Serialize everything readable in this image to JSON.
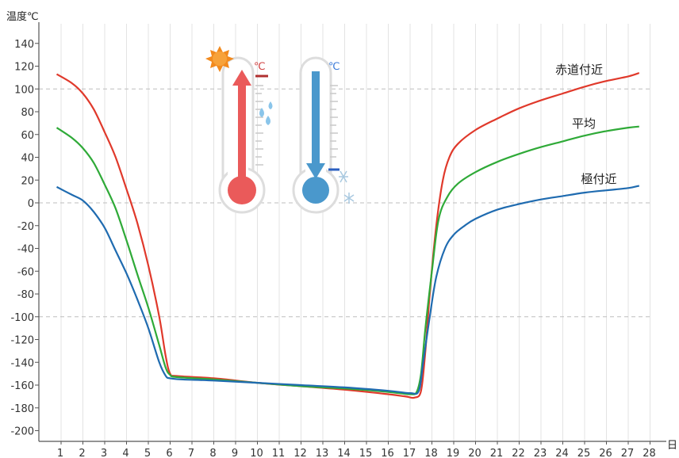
{
  "chart_data": {
    "type": "line",
    "ylabel": "温度℃",
    "xlabel": "日",
    "xlim": [
      0,
      28.5
    ],
    "ylim": [
      -210,
      150
    ],
    "x_ticks": [
      1,
      2,
      3,
      4,
      5,
      6,
      7,
      8,
      9,
      10,
      11,
      12,
      13,
      14,
      15,
      16,
      17,
      18,
      19,
      20,
      21,
      22,
      23,
      24,
      25,
      26,
      27,
      28
    ],
    "y_ticks": [
      140,
      120,
      100,
      80,
      60,
      40,
      20,
      0,
      -20,
      -40,
      -60,
      -80,
      -100,
      -120,
      -140,
      -160,
      -180,
      -200
    ],
    "dashed_reference_lines": [
      100,
      0,
      -100
    ],
    "grid": "vertical lines at each day",
    "icons": [
      "sun-icon",
      "thermometer-hot-icon",
      "water-drops-icon",
      "thermometer-cold-icon",
      "snowflake-icon"
    ],
    "series": [
      {
        "name": "赤道付近",
        "color": "#e0392b",
        "points": [
          [
            0.8,
            113
          ],
          [
            1.5,
            105
          ],
          [
            2,
            96
          ],
          [
            2.5,
            82
          ],
          [
            3,
            62
          ],
          [
            3.5,
            40
          ],
          [
            4,
            12
          ],
          [
            4.5,
            -18
          ],
          [
            5,
            -55
          ],
          [
            5.5,
            -100
          ],
          [
            5.8,
            -135
          ],
          [
            6,
            -150
          ],
          [
            6.3,
            -152
          ],
          [
            8,
            -154
          ],
          [
            10,
            -158
          ],
          [
            12,
            -161
          ],
          [
            14,
            -164
          ],
          [
            16,
            -168
          ],
          [
            16.8,
            -170
          ],
          [
            17.2,
            -171
          ],
          [
            17.5,
            -165
          ],
          [
            17.7,
            -130
          ],
          [
            17.9,
            -80
          ],
          [
            18.2,
            -20
          ],
          [
            18.5,
            20
          ],
          [
            18.8,
            40
          ],
          [
            19.2,
            52
          ],
          [
            20,
            64
          ],
          [
            21,
            74
          ],
          [
            22,
            83
          ],
          [
            23,
            90
          ],
          [
            24,
            96
          ],
          [
            25,
            102
          ],
          [
            26,
            107
          ],
          [
            27,
            111
          ],
          [
            27.5,
            114
          ]
        ]
      },
      {
        "name": "平均",
        "color": "#2faa38",
        "points": [
          [
            0.8,
            66
          ],
          [
            1.5,
            57
          ],
          [
            2,
            48
          ],
          [
            2.5,
            35
          ],
          [
            3,
            16
          ],
          [
            3.5,
            -5
          ],
          [
            4,
            -33
          ],
          [
            4.5,
            -63
          ],
          [
            5,
            -92
          ],
          [
            5.5,
            -125
          ],
          [
            5.8,
            -145
          ],
          [
            6,
            -151
          ],
          [
            6.3,
            -153
          ],
          [
            8,
            -155
          ],
          [
            10,
            -158
          ],
          [
            12,
            -161
          ],
          [
            14,
            -163
          ],
          [
            16,
            -166
          ],
          [
            17,
            -168
          ],
          [
            17.3,
            -166
          ],
          [
            17.5,
            -150
          ],
          [
            17.7,
            -110
          ],
          [
            18,
            -60
          ],
          [
            18.3,
            -15
          ],
          [
            18.7,
            5
          ],
          [
            19.2,
            17
          ],
          [
            20,
            27
          ],
          [
            21,
            36
          ],
          [
            22,
            43
          ],
          [
            23,
            49
          ],
          [
            24,
            54
          ],
          [
            25,
            59
          ],
          [
            26,
            63
          ],
          [
            27,
            66
          ],
          [
            27.5,
            67
          ]
        ]
      },
      {
        "name": "極付近",
        "color": "#1f6bb0",
        "points": [
          [
            0.8,
            14
          ],
          [
            1.5,
            7
          ],
          [
            2,
            2
          ],
          [
            2.5,
            -8
          ],
          [
            3,
            -22
          ],
          [
            3.5,
            -42
          ],
          [
            4,
            -62
          ],
          [
            4.5,
            -85
          ],
          [
            5,
            -110
          ],
          [
            5.5,
            -140
          ],
          [
            5.8,
            -152
          ],
          [
            6,
            -154
          ],
          [
            6.5,
            -155
          ],
          [
            8,
            -156
          ],
          [
            10,
            -158
          ],
          [
            12,
            -160
          ],
          [
            14,
            -162
          ],
          [
            16,
            -165
          ],
          [
            17,
            -167
          ],
          [
            17.4,
            -165
          ],
          [
            17.6,
            -140
          ],
          [
            17.9,
            -100
          ],
          [
            18.2,
            -65
          ],
          [
            18.6,
            -40
          ],
          [
            19,
            -28
          ],
          [
            19.5,
            -20
          ],
          [
            20,
            -14
          ],
          [
            21,
            -6
          ],
          [
            22,
            -1
          ],
          [
            23,
            3
          ],
          [
            24,
            6
          ],
          [
            25,
            9
          ],
          [
            26,
            11
          ],
          [
            27,
            13
          ],
          [
            27.5,
            15
          ]
        ]
      }
    ]
  }
}
